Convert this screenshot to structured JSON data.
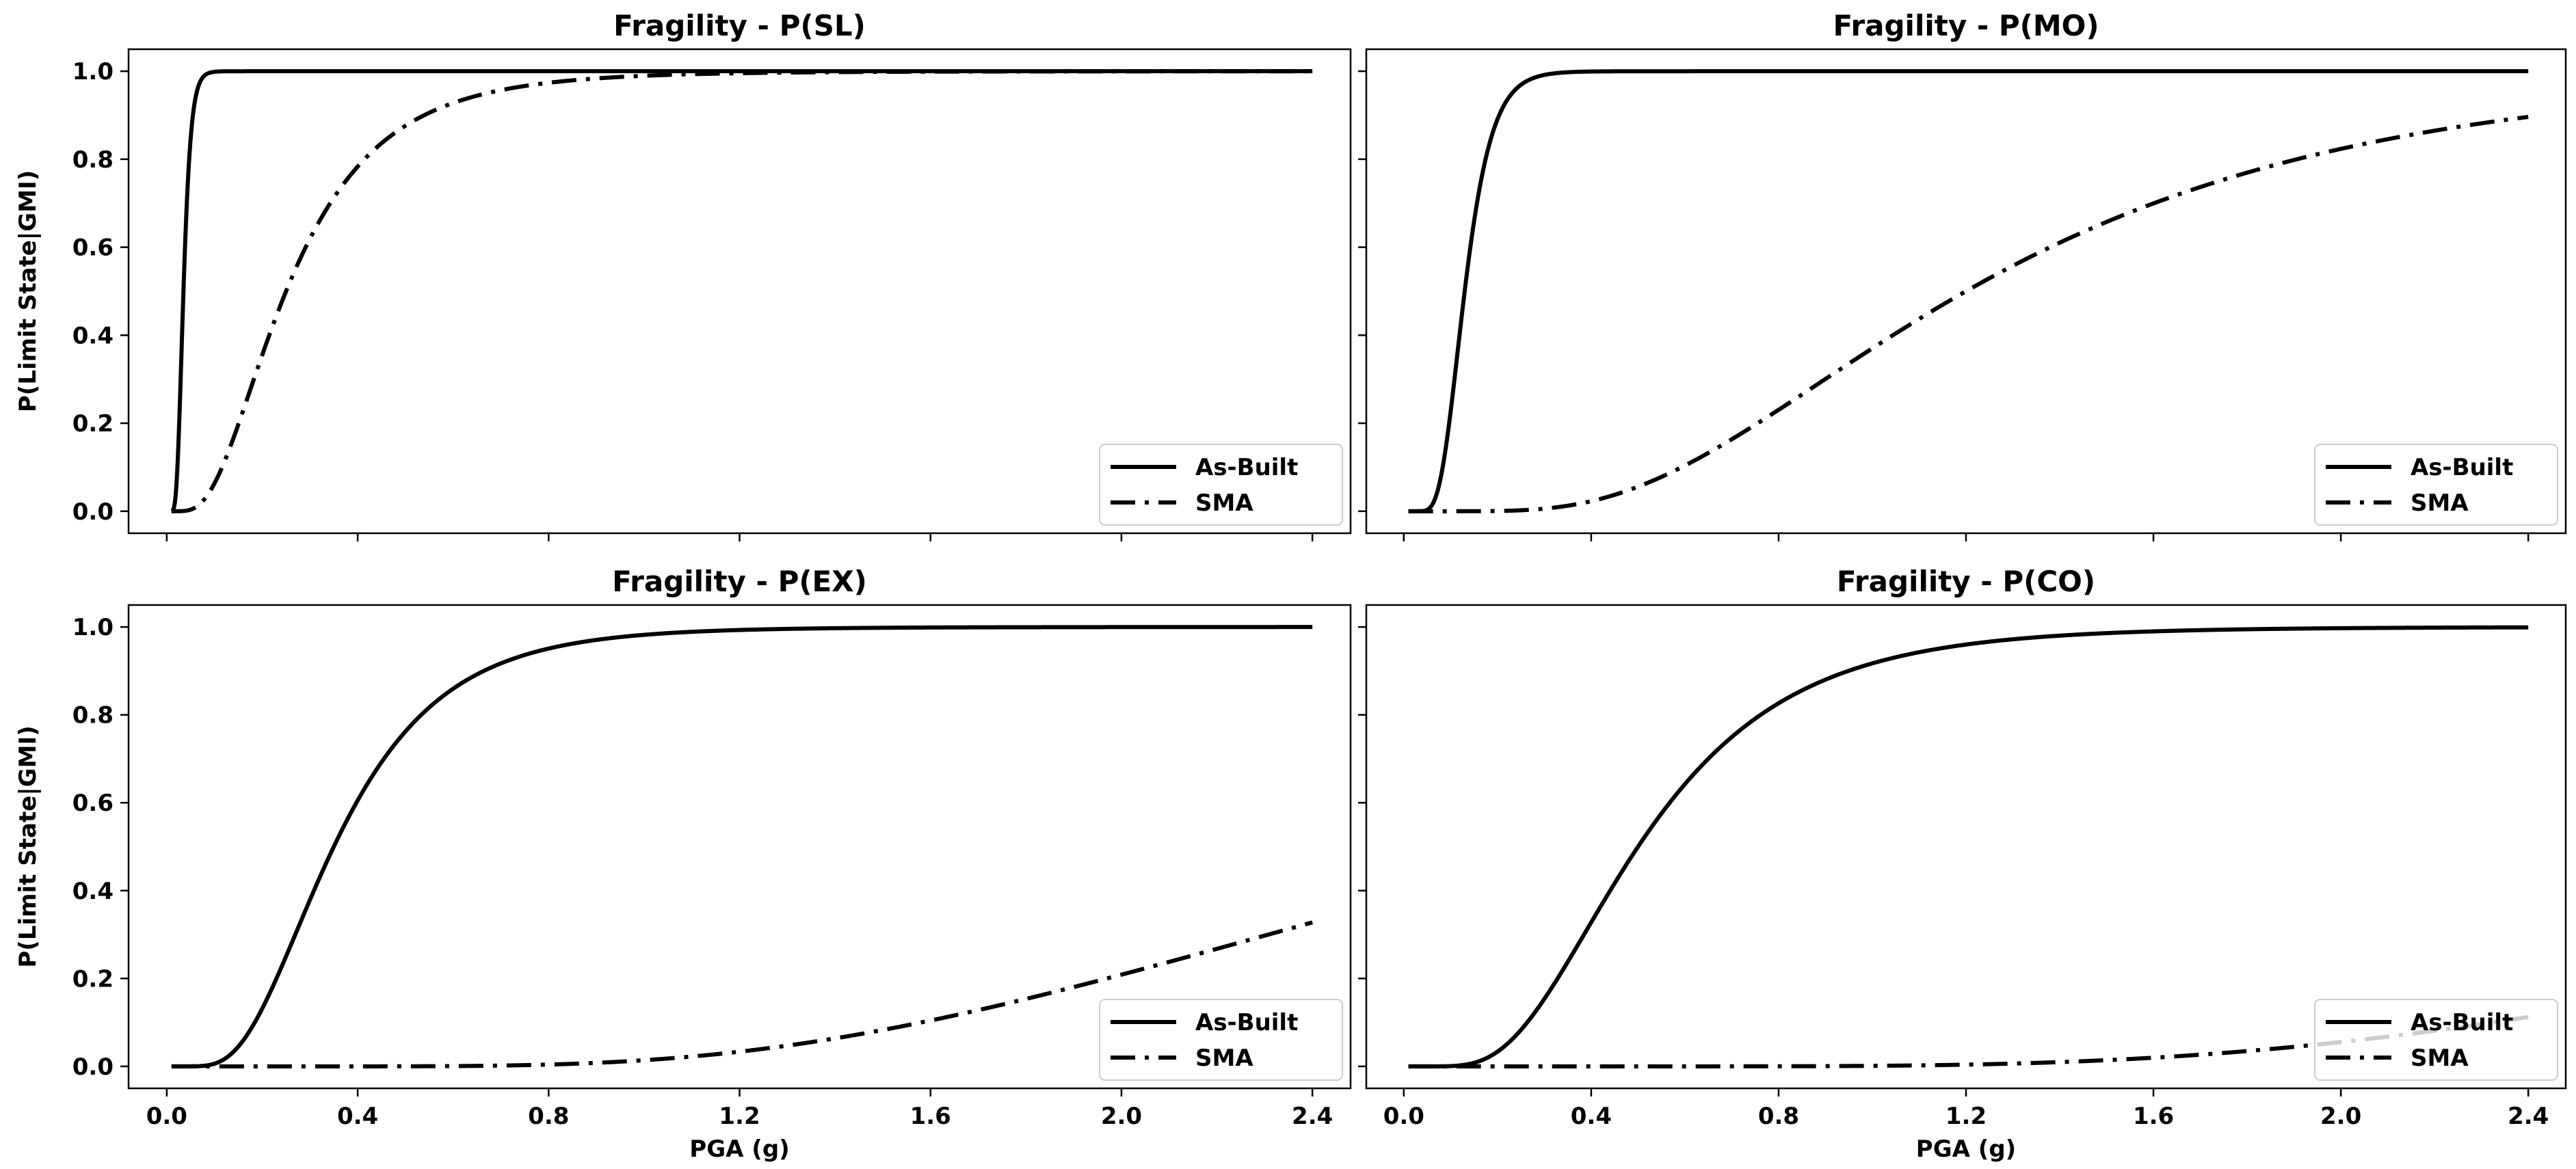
{
  "figure": {
    "shared_xlabel": "PGA (g)",
    "shared_ylabel": "P(Limit State|GMI)"
  },
  "chart_data": [
    {
      "type": "line",
      "title": "Fragility  - P(SL)",
      "xlabel": "",
      "ylabel": "P(Limit State|GMI)",
      "xlim": [
        -0.08,
        2.48
      ],
      "ylim": [
        -0.05,
        1.05
      ],
      "xticks": [
        0.0,
        0.4,
        0.8,
        1.2,
        1.6,
        2.0,
        2.4
      ],
      "yticks": [
        0.0,
        0.2,
        0.4,
        0.6,
        0.8,
        1.0
      ],
      "xtick_labels_shown": false,
      "ytick_labels_shown": true,
      "legend_position": "lower-right",
      "series": [
        {
          "name": "As-Built",
          "style": "solid",
          "x_range": [
            0.01,
            2.4
          ],
          "median": 0.035,
          "beta": 0.35
        },
        {
          "name": "SMA",
          "style": "dashdot",
          "x_range": [
            0.01,
            2.4
          ],
          "median": 0.25,
          "beta": 0.6
        }
      ]
    },
    {
      "type": "line",
      "title": "Fragility  - P(MO)",
      "xlabel": "",
      "ylabel": "",
      "xlim": [
        -0.08,
        2.48
      ],
      "ylim": [
        -0.05,
        1.05
      ],
      "xticks": [
        0.0,
        0.4,
        0.8,
        1.2,
        1.6,
        2.0,
        2.4
      ],
      "yticks": [
        0.0,
        0.2,
        0.4,
        0.6,
        0.8,
        1.0
      ],
      "xtick_labels_shown": false,
      "ytick_labels_shown": false,
      "legend_position": "lower-right",
      "series": [
        {
          "name": "As-Built",
          "style": "solid",
          "x_range": [
            0.01,
            2.4
          ],
          "median": 0.13,
          "beta": 0.35
        },
        {
          "name": "SMA",
          "style": "dashdot",
          "x_range": [
            0.01,
            2.4
          ],
          "median": 1.2,
          "beta": 0.55
        }
      ]
    },
    {
      "type": "line",
      "title": "Fragility  - P(EX)",
      "xlabel": "PGA (g)",
      "ylabel": "P(Limit State|GMI)",
      "xlim": [
        -0.08,
        2.48
      ],
      "ylim": [
        -0.05,
        1.05
      ],
      "xticks": [
        0.0,
        0.4,
        0.8,
        1.2,
        1.6,
        2.0,
        2.4
      ],
      "yticks": [
        0.0,
        0.2,
        0.4,
        0.6,
        0.8,
        1.0
      ],
      "xtick_labels_shown": true,
      "ytick_labels_shown": true,
      "legend_position": "lower-right",
      "series": [
        {
          "name": "As-Built",
          "style": "solid",
          "x_range": [
            0.01,
            2.4
          ],
          "median": 0.35,
          "beta": 0.5
        },
        {
          "name": "SMA",
          "style": "dashdot",
          "x_range": [
            0.01,
            2.4
          ],
          "median": 3.0,
          "beta": 0.5
        }
      ]
    },
    {
      "type": "line",
      "title": "Fragility  - P(CO)",
      "xlabel": "PGA (g)",
      "ylabel": "",
      "xlim": [
        -0.08,
        2.48
      ],
      "ylim": [
        -0.05,
        1.05
      ],
      "xticks": [
        0.0,
        0.4,
        0.8,
        1.2,
        1.6,
        2.0,
        2.4
      ],
      "yticks": [
        0.0,
        0.2,
        0.4,
        0.6,
        0.8,
        1.0
      ],
      "xtick_labels_shown": true,
      "ytick_labels_shown": false,
      "legend_position": "lower-right",
      "series": [
        {
          "name": "As-Built",
          "style": "solid",
          "x_range": [
            0.01,
            2.4
          ],
          "median": 0.5,
          "beta": 0.5
        },
        {
          "name": "SMA",
          "style": "dashdot",
          "x_range": [
            0.01,
            2.4
          ],
          "median": 4.3,
          "beta": 0.48
        }
      ]
    }
  ]
}
